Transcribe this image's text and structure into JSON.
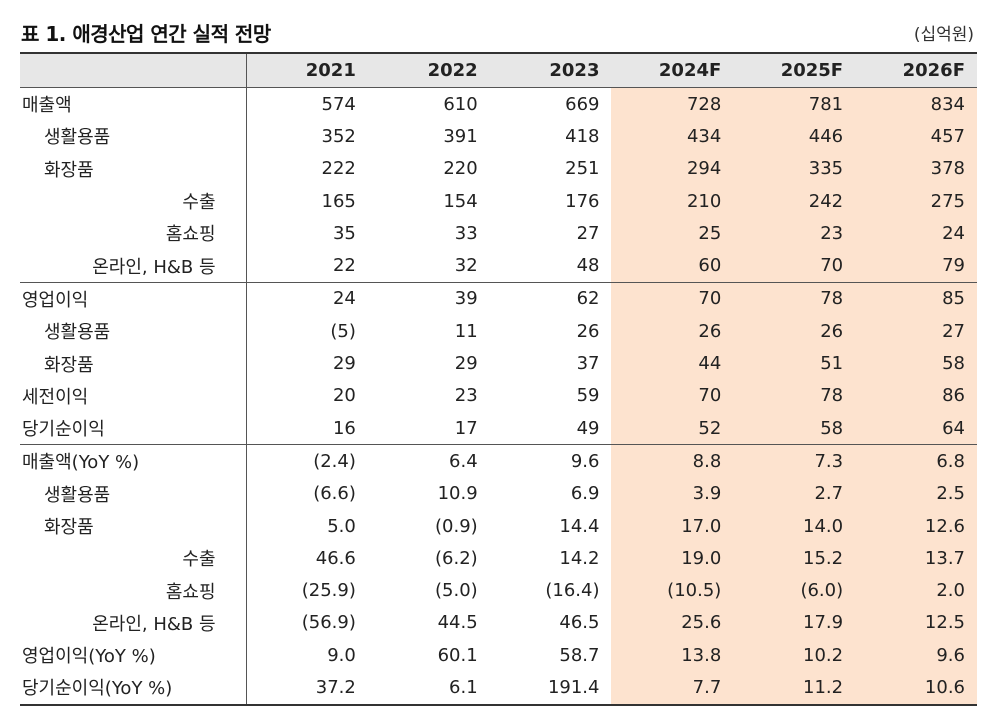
{
  "header": {
    "title": "표 1. 애경산업 연간 실적 전망",
    "unit": "(십억원)"
  },
  "table": {
    "columns": [
      "",
      "2021",
      "2022",
      "2023",
      "2024F",
      "2025F",
      "2026F"
    ],
    "forecast_color": "#fde3cf",
    "rows": [
      {
        "label": "매출액",
        "indent": 0,
        "values": [
          "574",
          "610",
          "669",
          "728",
          "781",
          "834"
        ]
      },
      {
        "label": "생활용품",
        "indent": 1,
        "values": [
          "352",
          "391",
          "418",
          "434",
          "446",
          "457"
        ]
      },
      {
        "label": "화장품",
        "indent": 1,
        "values": [
          "222",
          "220",
          "251",
          "294",
          "335",
          "378"
        ]
      },
      {
        "label": "수출",
        "indent": 2,
        "values": [
          "165",
          "154",
          "176",
          "210",
          "242",
          "275"
        ]
      },
      {
        "label": "홈쇼핑",
        "indent": 2,
        "values": [
          "35",
          "33",
          "27",
          "25",
          "23",
          "24"
        ]
      },
      {
        "label": "온라인, H&B 등",
        "indent": 2,
        "values": [
          "22",
          "32",
          "48",
          "60",
          "70",
          "79"
        ]
      },
      {
        "label": "영업이익",
        "indent": 0,
        "group_start": true,
        "values": [
          "24",
          "39",
          "62",
          "70",
          "78",
          "85"
        ]
      },
      {
        "label": "생활용품",
        "indent": 1,
        "values": [
          "(5)",
          "11",
          "26",
          "26",
          "26",
          "27"
        ]
      },
      {
        "label": "화장품",
        "indent": 1,
        "values": [
          "29",
          "29",
          "37",
          "44",
          "51",
          "58"
        ]
      },
      {
        "label": "세전이익",
        "indent": 0,
        "values": [
          "20",
          "23",
          "59",
          "70",
          "78",
          "86"
        ]
      },
      {
        "label": "당기순이익",
        "indent": 0,
        "values": [
          "16",
          "17",
          "49",
          "52",
          "58",
          "64"
        ]
      },
      {
        "label": "매출액(YoY %)",
        "indent": 0,
        "group_start": true,
        "values": [
          "(2.4)",
          "6.4",
          "9.6",
          "8.8",
          "7.3",
          "6.8"
        ]
      },
      {
        "label": "생활용품",
        "indent": 1,
        "values": [
          "(6.6)",
          "10.9",
          "6.9",
          "3.9",
          "2.7",
          "2.5"
        ]
      },
      {
        "label": "화장품",
        "indent": 1,
        "values": [
          "5.0",
          "(0.9)",
          "14.4",
          "17.0",
          "14.0",
          "12.6"
        ]
      },
      {
        "label": "수출",
        "indent": 2,
        "values": [
          "46.6",
          "(6.2)",
          "14.2",
          "19.0",
          "15.2",
          "13.7"
        ]
      },
      {
        "label": "홈쇼핑",
        "indent": 2,
        "values": [
          "(25.9)",
          "(5.0)",
          "(16.4)",
          "(10.5)",
          "(6.0)",
          "2.0"
        ]
      },
      {
        "label": "온라인, H&B 등",
        "indent": 2,
        "values": [
          "(56.9)",
          "44.5",
          "46.5",
          "25.6",
          "17.9",
          "12.5"
        ]
      },
      {
        "label": "영업이익(YoY %)",
        "indent": 0,
        "values": [
          "9.0",
          "60.1",
          "58.7",
          "13.8",
          "10.2",
          "9.6"
        ]
      },
      {
        "label": "당기순이익(YoY %)",
        "indent": 0,
        "values": [
          "37.2",
          "6.1",
          "191.4",
          "7.7",
          "11.2",
          "10.6"
        ]
      }
    ]
  }
}
